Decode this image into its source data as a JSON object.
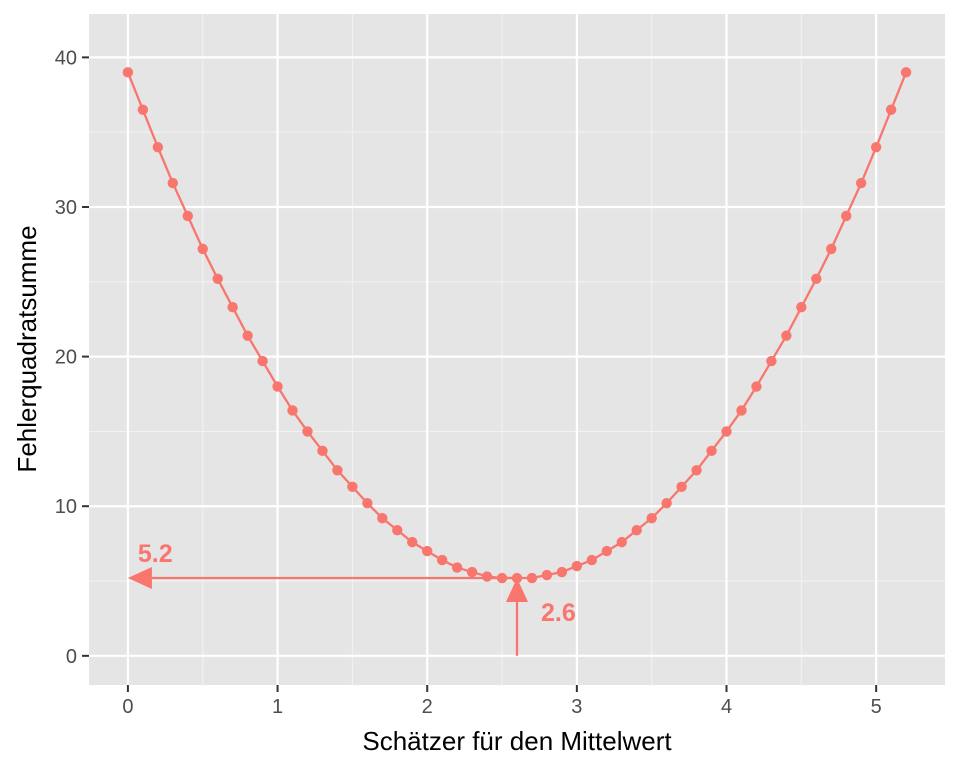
{
  "chart_data": {
    "type": "line",
    "xlabel": "Schätzer für den Mittelwert",
    "ylabel": "Fehlerquadratsumme",
    "xlim": [
      -0.26,
      5.46
    ],
    "ylim": [
      -1.95,
      42.9
    ],
    "x_ticks": [
      0,
      1,
      2,
      3,
      4,
      5
    ],
    "x_tick_labels": [
      "0",
      "1",
      "2",
      "3",
      "4",
      "5"
    ],
    "y_ticks": [
      0,
      10,
      20,
      30,
      40
    ],
    "y_tick_labels": [
      "0",
      "10",
      "20",
      "30",
      "40"
    ],
    "grid": true,
    "series": [
      {
        "color": "#F8766D",
        "markers": true,
        "x": [
          0,
          0.1,
          0.2,
          0.3,
          0.4,
          0.5,
          0.6,
          0.7,
          0.8,
          0.9,
          1.0,
          1.1,
          1.2,
          1.3,
          1.4,
          1.5,
          1.6,
          1.7,
          1.8,
          1.9,
          2.0,
          2.1,
          2.2,
          2.3,
          2.4,
          2.5,
          2.6,
          2.7,
          2.8,
          2.9,
          3.0,
          3.1,
          3.2,
          3.3,
          3.4,
          3.5,
          3.6,
          3.7,
          3.8,
          3.9,
          4.0,
          4.1,
          4.2,
          4.3,
          4.4,
          4.5,
          4.6,
          4.7,
          4.8,
          4.9,
          5.0,
          5.1,
          5.2
        ],
        "y": [
          39.0,
          36.5,
          34.0,
          31.6,
          29.4,
          27.2,
          25.2,
          23.3,
          21.4,
          19.7,
          18.0,
          16.4,
          15.0,
          13.7,
          12.4,
          11.3,
          10.2,
          9.2,
          8.4,
          7.6,
          7.0,
          6.4,
          5.9,
          5.6,
          5.3,
          5.2,
          5.2,
          5.2,
          5.4,
          5.6,
          6.0,
          6.4,
          7.0,
          7.6,
          8.4,
          9.2,
          10.2,
          11.3,
          12.4,
          13.7,
          15.0,
          16.4,
          18.0,
          19.7,
          21.4,
          23.3,
          25.2,
          27.2,
          29.4,
          31.6,
          34.0,
          36.5,
          39.0
        ]
      }
    ],
    "annotations": [
      {
        "label": "5.2",
        "kind": "arrow-to-y-axis",
        "from": [
          2.6,
          5.2
        ],
        "to": [
          0,
          5.2
        ]
      },
      {
        "label": "2.6",
        "kind": "arrow-from-x-axis",
        "from": [
          2.6,
          0
        ],
        "to": [
          2.6,
          5.2
        ]
      }
    ]
  }
}
